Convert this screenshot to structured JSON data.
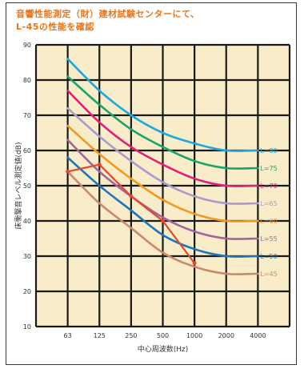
{
  "header": {
    "title_line1": "音響性能測定（財）建材試験センターにて、",
    "title_line2": "L-45の性能を確認"
  },
  "colors": {
    "plot_bg": "#f8ecc9",
    "grid": "#1a1a1a",
    "title": "#e8751a"
  },
  "chart_data": {
    "type": "line",
    "title": "音響性能測定（財）建材試験センターにて、L-45の性能を確認",
    "xlabel": "中心周波数(Hz)",
    "ylabel": "床衝撃音レベル測定値(dB)",
    "x_categories": [
      "63",
      "125",
      "250",
      "500",
      "1000",
      "2000",
      "4000"
    ],
    "y_ticks": [
      10,
      20,
      30,
      40,
      50,
      60,
      70,
      80,
      90
    ],
    "ylim": [
      10,
      90
    ],
    "grid": true,
    "legend_position": "right",
    "series": [
      {
        "name": "L=80",
        "color": "#1ea8dd",
        "values": [
          86,
          77,
          70,
          65,
          62,
          60,
          60
        ]
      },
      {
        "name": "L=75",
        "color": "#1aa36b",
        "values": [
          81,
          73,
          66,
          61,
          57,
          55,
          55
        ]
      },
      {
        "name": "L=70",
        "color": "#e0207a",
        "values": [
          77,
          68,
          61,
          56,
          52,
          50,
          50
        ]
      },
      {
        "name": "L=65",
        "color": "#a99ad0",
        "values": [
          72,
          64,
          57,
          51,
          47,
          45,
          45
        ]
      },
      {
        "name": "L=60",
        "color": "#f39a1e",
        "values": [
          67,
          59,
          52,
          46,
          42,
          40,
          40
        ]
      },
      {
        "name": "L=55",
        "color": "#a0659b",
        "values": [
          63,
          54,
          47,
          41,
          37,
          35,
          35
        ]
      },
      {
        "name": "L=50",
        "color": "#1b75bb",
        "values": [
          58,
          50,
          43,
          36,
          32,
          30,
          30
        ]
      },
      {
        "name": "L=45",
        "color": "#c88a6a",
        "values": [
          54,
          45,
          38,
          31,
          27,
          25,
          25
        ]
      }
    ],
    "measured": {
      "color": "#e8462c",
      "values": [
        54,
        56,
        47,
        40,
        28
      ]
    }
  }
}
